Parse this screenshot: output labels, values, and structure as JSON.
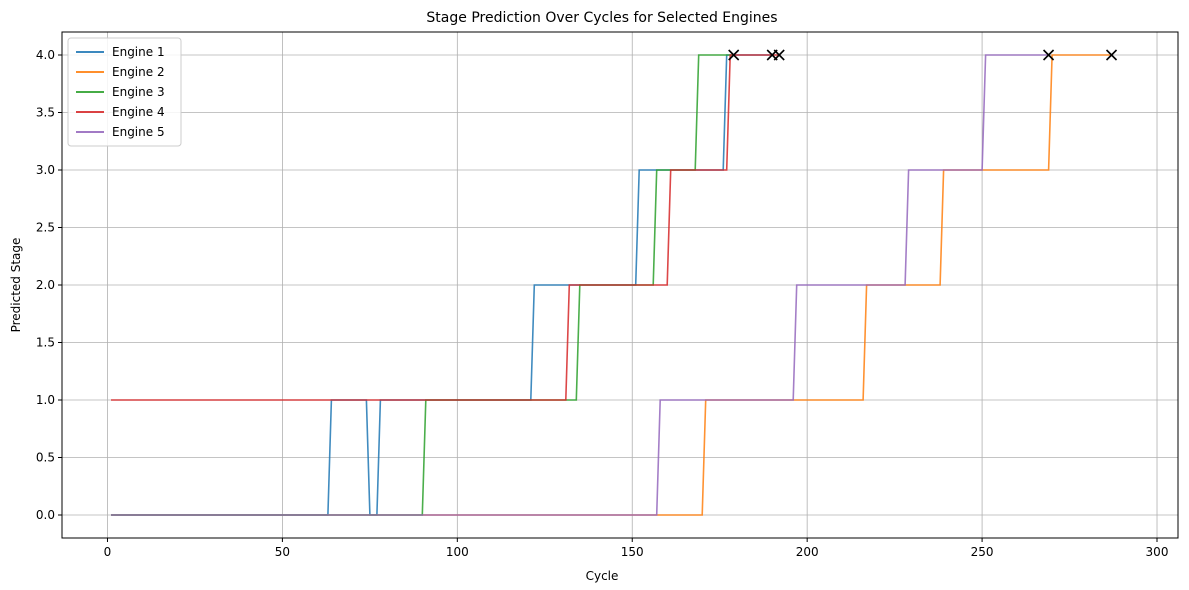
{
  "chart_data": {
    "type": "line",
    "title": "Stage Prediction Over Cycles for Selected Engines",
    "xlabel": "Cycle",
    "ylabel": "Predicted Stage",
    "xlim": [
      -13,
      306
    ],
    "ylim": [
      -0.2,
      4.2
    ],
    "xticks": [
      0,
      50,
      100,
      150,
      200,
      250,
      300
    ],
    "yticks": [
      0.0,
      0.5,
      1.0,
      1.5,
      2.0,
      2.5,
      3.0,
      3.5,
      4.0
    ],
    "xtick_labels": [
      "0",
      "50",
      "100",
      "150",
      "200",
      "250",
      "300"
    ],
    "ytick_labels": [
      "0.0",
      "0.5",
      "1.0",
      "1.5",
      "2.0",
      "2.5",
      "3.0",
      "3.5",
      "4.0"
    ],
    "grid": true,
    "legend_position": "top-left",
    "series": [
      {
        "name": "Engine 1",
        "color": "#1f77b4",
        "steps": [
          [
            1,
            0
          ],
          [
            64,
            1
          ],
          [
            75,
            0
          ],
          [
            78,
            1
          ],
          [
            122,
            2
          ],
          [
            152,
            3
          ],
          [
            177,
            4
          ],
          [
            190,
            4
          ]
        ],
        "end": [
          190,
          4
        ]
      },
      {
        "name": "Engine 2",
        "color": "#ff7f0e",
        "steps": [
          [
            1,
            0
          ],
          [
            171,
            1
          ],
          [
            217,
            2
          ],
          [
            239,
            3
          ],
          [
            270,
            4
          ],
          [
            287,
            4
          ]
        ],
        "end": [
          287,
          4
        ]
      },
      {
        "name": "Engine 3",
        "color": "#2ca02c",
        "steps": [
          [
            1,
            0
          ],
          [
            91,
            1
          ],
          [
            135,
            2
          ],
          [
            157,
            3
          ],
          [
            169,
            4
          ],
          [
            179,
            4
          ]
        ],
        "end": [
          179,
          4
        ]
      },
      {
        "name": "Engine 4",
        "color": "#d62728",
        "steps": [
          [
            1,
            1
          ],
          [
            132,
            2
          ],
          [
            161,
            3
          ],
          [
            178,
            4
          ],
          [
            192,
            4
          ]
        ],
        "end": [
          192,
          4
        ]
      },
      {
        "name": "Engine 5",
        "color": "#9467bd",
        "steps": [
          [
            1,
            0
          ],
          [
            158,
            1
          ],
          [
            197,
            2
          ],
          [
            229,
            3
          ],
          [
            251,
            4
          ],
          [
            269,
            4
          ]
        ],
        "end": [
          269,
          4
        ]
      }
    ],
    "end_markers": [
      [
        179,
        4
      ],
      [
        190,
        4
      ],
      [
        192,
        4
      ],
      [
        269,
        4
      ],
      [
        287,
        4
      ]
    ],
    "marker_symbol": "x",
    "marker_color": "#000000"
  }
}
